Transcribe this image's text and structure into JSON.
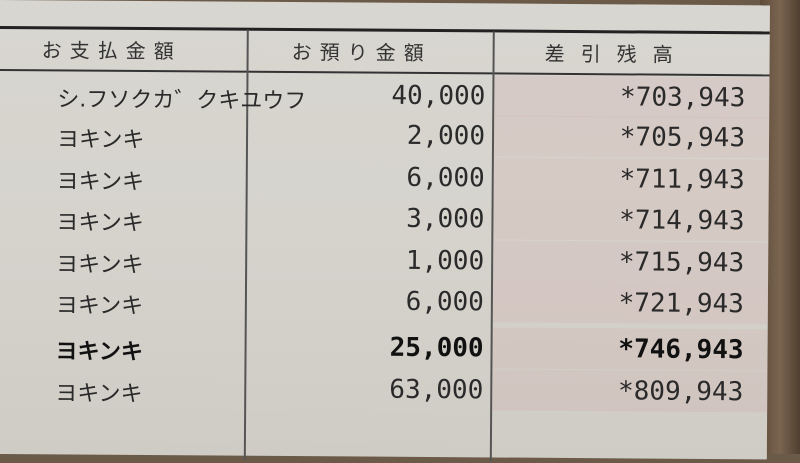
{
  "headers": {
    "payment": "お支払金額",
    "deposit": "お預り金額",
    "balance": "差引残高"
  },
  "rows": [
    {
      "description": "シ.フソクカ゛クキユウフ",
      "deposit": "40,000",
      "balance": "*703,943"
    },
    {
      "description": "ヨキンキ",
      "deposit": "2,000",
      "balance": "*705,943"
    },
    {
      "description": "ヨキンキ",
      "deposit": "6,000",
      "balance": "*711,943"
    },
    {
      "description": "ヨキンキ",
      "deposit": "3,000",
      "balance": "*714,943"
    },
    {
      "description": "ヨキンキ",
      "deposit": "1,000",
      "balance": "*715,943"
    },
    {
      "description": "ヨキンキ",
      "deposit": "6,000",
      "balance": "*721,943"
    },
    {
      "description": "ヨキンキ",
      "deposit": "25,000",
      "balance": "*746,943"
    },
    {
      "description": "ヨキンキ",
      "deposit": "63,000",
      "balance": "*809,943"
    }
  ]
}
